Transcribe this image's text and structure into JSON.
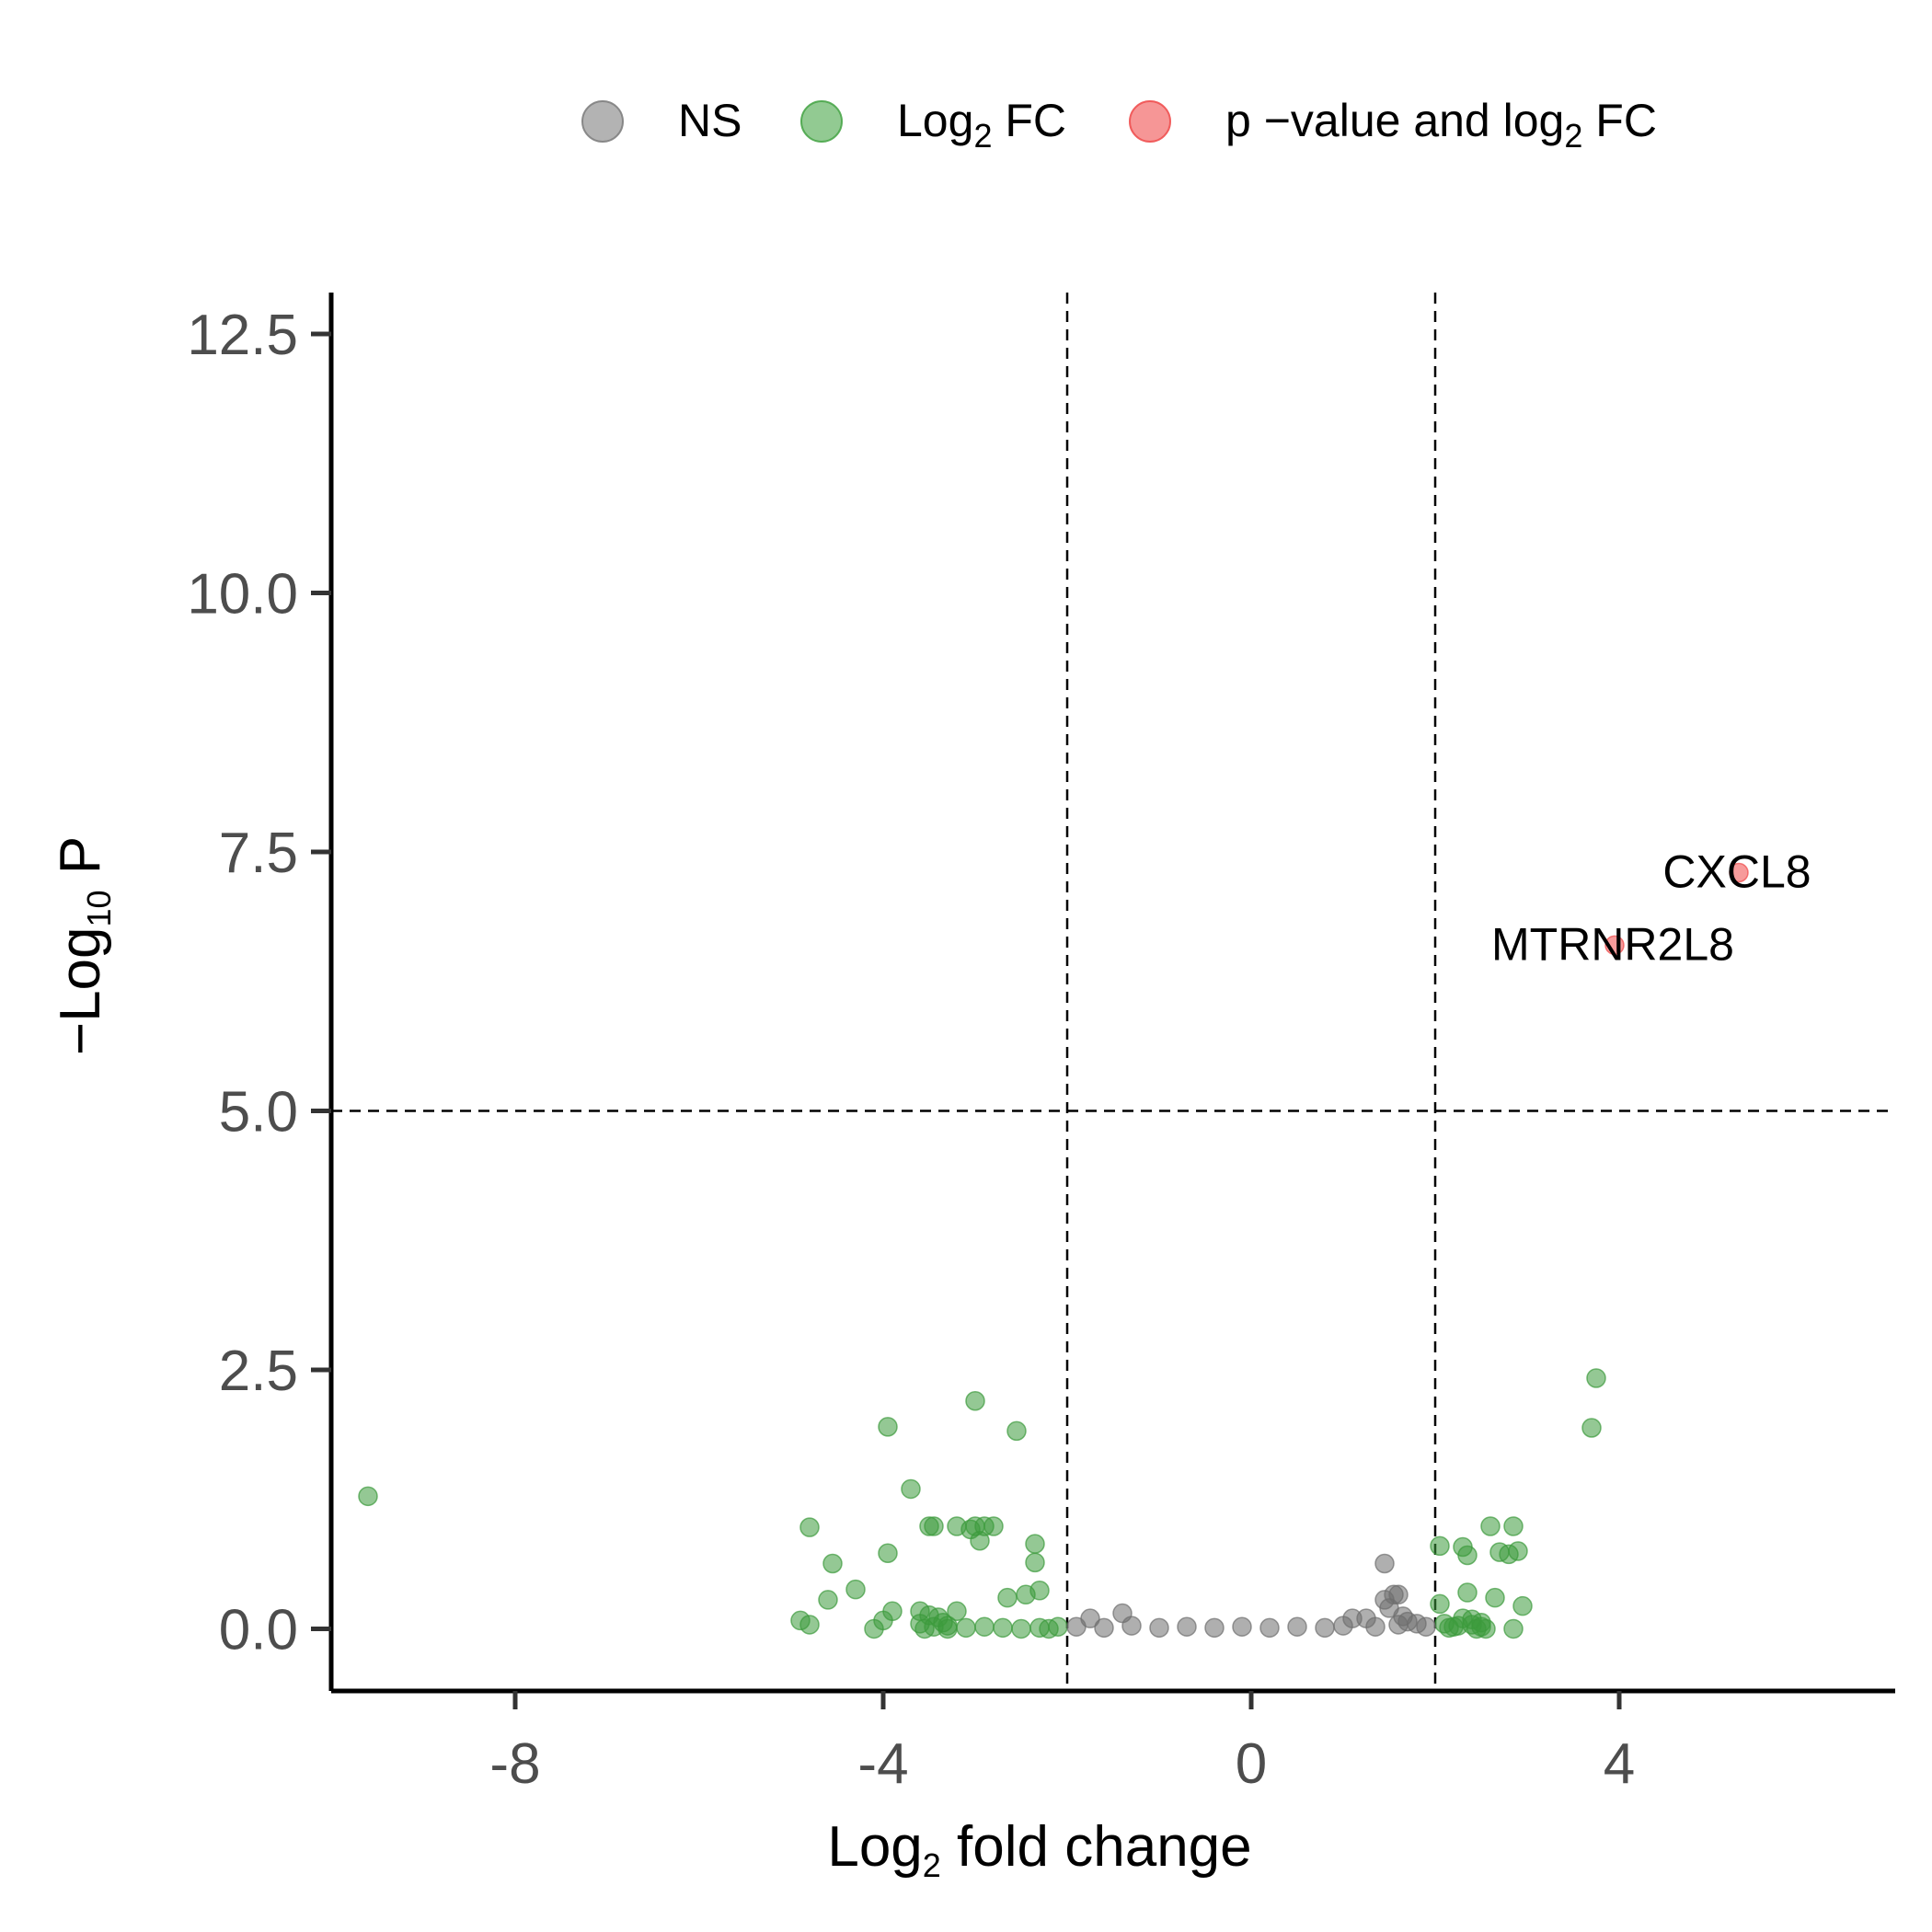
{
  "chart_data": {
    "type": "scatter",
    "title": "",
    "xlabel": {
      "main": "Log",
      "sub": "2",
      "rest": " fold change"
    },
    "ylabel": {
      "main": "−Log",
      "sub": "10",
      "rest": " P"
    },
    "xlim": [
      -10.0,
      7.0
    ],
    "ylim": [
      -0.6,
      12.9
    ],
    "x_ticks": [
      -8,
      -4,
      0,
      4
    ],
    "x_tick_labels": [
      "-8",
      "-4",
      "0",
      "4"
    ],
    "y_ticks": [
      0.0,
      2.5,
      5.0,
      7.5,
      10.0,
      12.5
    ],
    "y_tick_labels": [
      "0.0",
      "2.5",
      "5.0",
      "7.5",
      "10.0",
      "12.5"
    ],
    "grid": false,
    "legend_position": "top",
    "cutoffs": {
      "log2fc": [
        -2,
        2
      ],
      "neg_log10_p": 5
    },
    "legend": [
      {
        "key": "ns",
        "main": "NS",
        "sub": "",
        "rest": "",
        "color": "#808080"
      },
      {
        "key": "fc",
        "main": "Log",
        "sub": "2",
        "rest": " FC",
        "color": "#4aa64a"
      },
      {
        "key": "both",
        "main": "p −value and log",
        "sub": "2",
        "rest": " FC",
        "color": "#f05050"
      }
    ],
    "colors": {
      "ns": "#6e6e6e",
      "fc": "#3c9a3c",
      "both": "#f04848",
      "axis": "#000000"
    },
    "series": [
      {
        "key": "fc",
        "points": [
          [
            -9.6,
            1.28
          ],
          [
            -4.9,
            0.08
          ],
          [
            -4.8,
            0.04
          ],
          [
            -4.8,
            0.98
          ],
          [
            -4.6,
            0.28
          ],
          [
            -4.55,
            0.63
          ],
          [
            -4.3,
            0.38
          ],
          [
            -4.1,
            0.0
          ],
          [
            -4.0,
            0.08
          ],
          [
            -3.95,
            1.95
          ],
          [
            -3.95,
            0.73
          ],
          [
            -3.9,
            0.17
          ],
          [
            -3.7,
            1.35
          ],
          [
            -3.6,
            0.17
          ],
          [
            -3.55,
            0.0
          ],
          [
            -3.5,
            0.13
          ],
          [
            -3.5,
            0.99
          ],
          [
            -3.45,
            0.99
          ],
          [
            -3.4,
            0.11
          ],
          [
            -3.3,
            0.0
          ],
          [
            -3.2,
            0.99
          ],
          [
            -3.2,
            0.17
          ],
          [
            -3.05,
            0.96
          ],
          [
            -3.0,
            0.99
          ],
          [
            -3.0,
            2.2
          ],
          [
            -2.95,
            0.85
          ],
          [
            -2.9,
            0.99
          ],
          [
            -2.8,
            0.99
          ],
          [
            -2.65,
            0.3
          ],
          [
            -2.55,
            1.91
          ],
          [
            -2.45,
            0.33
          ],
          [
            -2.35,
            0.82
          ],
          [
            -2.35,
            0.64
          ],
          [
            -2.3,
            0.37
          ],
          [
            -2.2,
            0.0
          ],
          [
            -3.45,
            0.02
          ],
          [
            -3.3,
            0.03
          ],
          [
            -3.1,
            0.01
          ],
          [
            -2.9,
            0.02
          ],
          [
            -2.7,
            0.01
          ],
          [
            -2.5,
            0.0
          ],
          [
            -2.3,
            0.01
          ],
          [
            -2.1,
            0.02
          ],
          [
            -3.6,
            0.05
          ],
          [
            -3.35,
            0.06
          ],
          [
            2.05,
            0.24
          ],
          [
            2.05,
            0.8
          ],
          [
            2.1,
            0.05
          ],
          [
            2.2,
            0.02
          ],
          [
            2.3,
            0.1
          ],
          [
            2.3,
            0.79
          ],
          [
            2.35,
            0.71
          ],
          [
            2.35,
            0.35
          ],
          [
            2.4,
            0.09
          ],
          [
            2.45,
            0.0
          ],
          [
            2.5,
            0.06
          ],
          [
            2.55,
            0.0
          ],
          [
            2.6,
            0.99
          ],
          [
            2.65,
            0.3
          ],
          [
            2.7,
            0.74
          ],
          [
            2.8,
            0.72
          ],
          [
            2.85,
            0.99
          ],
          [
            2.85,
            0.0
          ],
          [
            2.9,
            0.75
          ],
          [
            2.95,
            0.22
          ],
          [
            3.7,
            1.94
          ],
          [
            3.75,
            2.42
          ],
          [
            2.15,
            0.01
          ],
          [
            2.25,
            0.03
          ],
          [
            2.4,
            0.04
          ],
          [
            2.5,
            0.02
          ]
        ]
      },
      {
        "key": "ns",
        "points": [
          [
            -1.75,
            0.1
          ],
          [
            -1.4,
            0.15
          ],
          [
            1.1,
            0.1
          ],
          [
            1.25,
            0.1
          ],
          [
            1.45,
            0.63
          ],
          [
            1.45,
            0.28
          ],
          [
            1.5,
            0.2
          ],
          [
            1.55,
            0.33
          ],
          [
            1.6,
            0.33
          ],
          [
            1.65,
            0.12
          ],
          [
            1.7,
            0.07
          ],
          [
            1.8,
            0.05
          ],
          [
            -1.9,
            0.02
          ],
          [
            -1.6,
            0.01
          ],
          [
            -1.3,
            0.03
          ],
          [
            -1.0,
            0.01
          ],
          [
            -0.7,
            0.02
          ],
          [
            -0.4,
            0.01
          ],
          [
            -0.1,
            0.02
          ],
          [
            0.2,
            0.01
          ],
          [
            0.5,
            0.02
          ],
          [
            0.8,
            0.01
          ],
          [
            1.0,
            0.03
          ],
          [
            1.35,
            0.02
          ],
          [
            1.6,
            0.04
          ],
          [
            1.9,
            0.02
          ]
        ]
      },
      {
        "key": "both",
        "points": [
          [
            5.3,
            7.3,
            "CXCL8"
          ],
          [
            3.95,
            6.6,
            "MTRNR2L8"
          ]
        ]
      }
    ],
    "point_labels": [
      {
        "text": "CXCL8",
        "x": 5.3,
        "y": 7.3
      },
      {
        "text": "MTRNR2L8",
        "x": 3.95,
        "y": 6.6
      }
    ]
  }
}
